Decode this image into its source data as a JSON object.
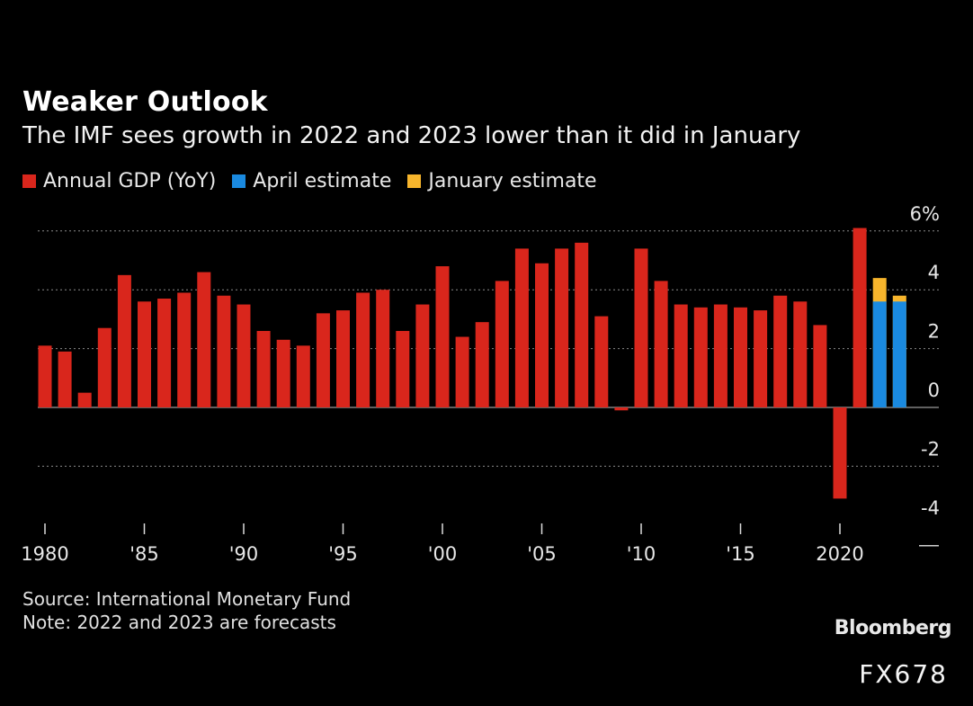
{
  "header": {
    "title": "Weaker Outlook",
    "subtitle": "The IMF sees growth in 2022 and 2023 lower than it did in January"
  },
  "legend": {
    "items": [
      {
        "label": "Annual GDP (YoY)",
        "color": "#d9261c"
      },
      {
        "label": "April estimate",
        "color": "#1a8ae0"
      },
      {
        "label": "January estimate",
        "color": "#f7b52c"
      }
    ]
  },
  "chart_data": {
    "type": "bar",
    "title": "Weaker Outlook",
    "subtitle": "The IMF sees growth in 2022 and 2023 lower than it did in January",
    "x": [
      1980,
      1981,
      1982,
      1983,
      1984,
      1985,
      1986,
      1987,
      1988,
      1989,
      1990,
      1991,
      1992,
      1993,
      1994,
      1995,
      1996,
      1997,
      1998,
      1999,
      2000,
      2001,
      2002,
      2003,
      2004,
      2005,
      2006,
      2007,
      2008,
      2009,
      2010,
      2011,
      2012,
      2013,
      2014,
      2015,
      2016,
      2017,
      2018,
      2019,
      2020,
      2021
    ],
    "series": [
      {
        "name": "Annual GDP (YoY)",
        "color": "#d9261c",
        "values": [
          2.1,
          1.9,
          0.5,
          2.7,
          4.5,
          3.6,
          3.7,
          3.9,
          4.6,
          3.8,
          3.5,
          2.6,
          2.3,
          2.1,
          3.2,
          3.3,
          3.9,
          4.0,
          2.6,
          3.5,
          4.8,
          2.4,
          2.9,
          4.3,
          5.4,
          4.9,
          5.4,
          5.6,
          3.1,
          -0.1,
          5.4,
          4.3,
          3.5,
          3.4,
          3.5,
          3.4,
          3.3,
          3.8,
          3.6,
          2.8,
          -3.1,
          6.1
        ]
      },
      {
        "name": "April estimate",
        "color": "#1a8ae0",
        "x": [
          2022,
          2023
        ],
        "values": [
          3.6,
          3.6
        ]
      },
      {
        "name": "January estimate",
        "color": "#f7b52c",
        "x": [
          2022,
          2023
        ],
        "values": [
          4.4,
          3.8
        ]
      }
    ],
    "xticks": [
      {
        "value": 1980,
        "label": "1980"
      },
      {
        "value": 1985,
        "label": "'85"
      },
      {
        "value": 1990,
        "label": "'90"
      },
      {
        "value": 1995,
        "label": "'95"
      },
      {
        "value": 2000,
        "label": "'00"
      },
      {
        "value": 2005,
        "label": "'05"
      },
      {
        "value": 2010,
        "label": "'10"
      },
      {
        "value": 2015,
        "label": "'15"
      },
      {
        "value": 2020,
        "label": "2020"
      }
    ],
    "yticks": [
      {
        "value": 6,
        "label": "6%"
      },
      {
        "value": 4,
        "label": "4"
      },
      {
        "value": 2,
        "label": "2"
      },
      {
        "value": 0,
        "label": "0"
      },
      {
        "value": -2,
        "label": "-2"
      },
      {
        "value": -4,
        "label": "-4"
      }
    ],
    "ylim": [
      -4,
      6
    ],
    "grid": true,
    "legend_position": "top-left"
  },
  "footer": {
    "source": "Source: International Monetary Fund",
    "note": "Note: 2022 and 2023 are forecasts",
    "brand": "Bloomberg",
    "code": "FX678"
  }
}
